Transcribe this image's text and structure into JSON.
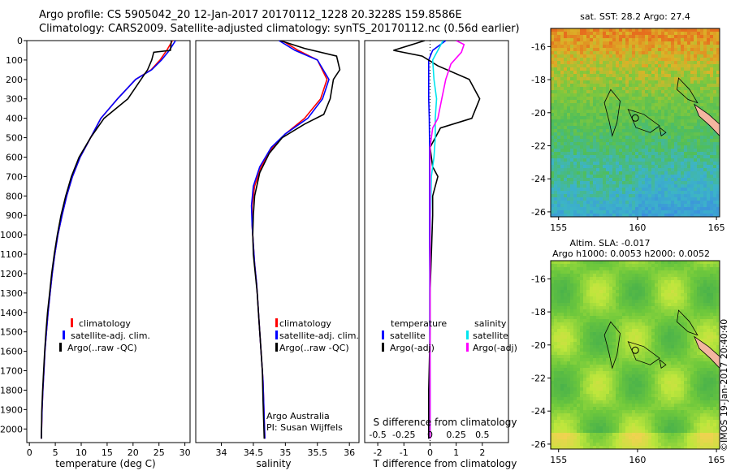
{
  "header": {
    "line1": "Argo profile: CS 5905042_20 12-Jan-2017 20170112_1228 20.3228S 159.8586E",
    "line2": "Climatology: CARS2009. Satellite-adjusted climatology: synTS_20170112.nc (0.56d earlier)"
  },
  "colors": {
    "climatology": "#ff0000",
    "satellite": "#0000ff",
    "argo": "#000000",
    "sal_satellite": "#00e5ee",
    "sal_argo": "#ff00ff"
  },
  "panels": {
    "temperature": {
      "xlabel": "temperature (deg C)",
      "legend": [
        "climatology",
        "satellite-adj. clim.",
        "Argo(..raw -QC)"
      ]
    },
    "salinity": {
      "xlabel": "salinity",
      "legend": [
        "climatology",
        "satellite-adj. clim.",
        "Argo(..raw -QC)"
      ],
      "credit1": "Argo Australia",
      "credit2": "PI: Susan Wijffels"
    },
    "difference": {
      "xlabel": "T difference from climatology",
      "toplabel": "S difference from climatology",
      "legend_temp_title": "temperature",
      "legend_sal_title": "salinity",
      "legend_temp": [
        "satellite",
        "Argo(-adj)"
      ],
      "legend_sal": [
        "satellite",
        "Argo(-adj)"
      ]
    },
    "sst_map": {
      "title": "sat. SST: 28.2  Argo: 27.4"
    },
    "sla_map": {
      "title1": "Altim. SLA: -0.017",
      "title2": "Argo h1000: 0.0053  h2000: 0.0052"
    },
    "watermark": "©IMOS 19-Jan-2017 20:40:40"
  },
  "chart_data": [
    {
      "type": "line",
      "name": "temperature",
      "xlabel": "temperature (deg C)",
      "ylabel": "",
      "xlim": [
        -0.5,
        31
      ],
      "ylim": [
        2070,
        0
      ],
      "xticks": [
        0,
        5,
        10,
        15,
        20,
        25,
        30
      ],
      "yticks": [
        0,
        100,
        200,
        300,
        400,
        500,
        600,
        700,
        800,
        900,
        1000,
        1100,
        1200,
        1300,
        1400,
        1500,
        1600,
        1700,
        1800,
        1900,
        2000
      ],
      "series": [
        {
          "name": "climatology",
          "x": [
            27.6,
            26.5,
            25.2,
            23.5,
            20.5,
            17.0,
            13.8,
            11.8,
            9.8,
            8.3,
            7.2,
            6.3,
            5.5,
            4.9,
            4.4,
            4.0,
            3.6,
            3.3,
            3.0,
            2.8,
            2.6,
            2.45,
            2.3
          ],
          "y": [
            0,
            50,
            100,
            150,
            200,
            300,
            400,
            500,
            600,
            700,
            800,
            900,
            1000,
            1100,
            1200,
            1300,
            1400,
            1500,
            1600,
            1700,
            1800,
            1900,
            2050
          ]
        },
        {
          "name": "satellite-adj. clim.",
          "x": [
            28.2,
            27.0,
            25.5,
            23.6,
            20.5,
            17.0,
            13.8,
            11.8,
            9.8,
            8.3,
            7.2,
            6.3,
            5.5,
            4.9,
            4.4,
            4.0,
            3.6,
            3.3,
            3.0,
            2.8,
            2.6,
            2.45,
            2.3
          ],
          "y": [
            0,
            50,
            100,
            150,
            200,
            300,
            400,
            500,
            600,
            700,
            800,
            900,
            1000,
            1100,
            1200,
            1300,
            1400,
            1500,
            1600,
            1700,
            1800,
            1900,
            2050
          ]
        },
        {
          "name": "Argo(..raw -QC)",
          "x": [
            27.4,
            27.2,
            24.0,
            23.6,
            22.8,
            19.0,
            14.4,
            11.8,
            9.6,
            8.1,
            7.0,
            6.1,
            5.4,
            4.8,
            4.3,
            3.9,
            3.5,
            3.2,
            2.95,
            2.75,
            2.55,
            2.4,
            2.3
          ],
          "y": [
            0,
            50,
            60,
            100,
            150,
            300,
            400,
            500,
            600,
            700,
            800,
            900,
            1000,
            1100,
            1200,
            1300,
            1400,
            1500,
            1600,
            1700,
            1800,
            1900,
            2050
          ]
        }
      ]
    },
    {
      "type": "line",
      "name": "salinity",
      "xlabel": "salinity",
      "ylabel": "",
      "xlim": [
        33.6,
        36.15
      ],
      "ylim": [
        2070,
        0
      ],
      "xticks": [
        34,
        34.5,
        35,
        35.5,
        36
      ],
      "series": [
        {
          "name": "climatology",
          "x": [
            34.95,
            35.2,
            35.5,
            35.65,
            35.55,
            35.3,
            35.0,
            34.8,
            34.62,
            34.52,
            34.48,
            34.48,
            34.5,
            34.52,
            34.55,
            34.57,
            34.59,
            34.61,
            34.63,
            34.65,
            34.66,
            34.67,
            34.68
          ],
          "y": [
            0,
            50,
            100,
            200,
            300,
            400,
            480,
            550,
            650,
            750,
            850,
            950,
            1050,
            1150,
            1250,
            1350,
            1450,
            1550,
            1650,
            1750,
            1850,
            1950,
            2050
          ]
        },
        {
          "name": "satellite-adj. clim.",
          "x": [
            34.9,
            35.15,
            35.5,
            35.68,
            35.58,
            35.35,
            35.0,
            34.78,
            34.6,
            34.5,
            34.47,
            34.48,
            34.5,
            34.52,
            34.55,
            34.57,
            34.59,
            34.61,
            34.63,
            34.65,
            34.66,
            34.67,
            34.68
          ],
          "y": [
            0,
            50,
            100,
            200,
            300,
            400,
            480,
            550,
            650,
            750,
            850,
            950,
            1050,
            1150,
            1250,
            1350,
            1450,
            1550,
            1650,
            1750,
            1850,
            1950,
            2050
          ]
        },
        {
          "name": "Argo(..raw -QC)",
          "x": [
            34.92,
            35.3,
            35.8,
            35.85,
            35.75,
            35.7,
            35.6,
            35.3,
            34.95,
            34.75,
            34.6,
            34.52,
            34.5,
            34.49,
            34.5,
            34.53,
            34.56,
            34.58,
            34.6,
            34.62,
            34.64,
            34.65,
            34.67
          ],
          "y": [
            0,
            40,
            80,
            150,
            200,
            300,
            380,
            430,
            500,
            580,
            680,
            800,
            900,
            1000,
            1100,
            1200,
            1300,
            1400,
            1500,
            1600,
            1700,
            1850,
            2050
          ]
        }
      ]
    },
    {
      "type": "line",
      "name": "difference",
      "xlabel": "T difference from climatology",
      "x2label": "S difference from climatology",
      "xlim": [
        -2.5,
        3
      ],
      "ylim": [
        2070,
        0
      ],
      "xticks": [
        -2,
        -1,
        0,
        1,
        2
      ],
      "x2ticks": [
        "-0.5",
        "-0.25",
        "0",
        "0.25",
        "0.5"
      ],
      "series": [
        {
          "name": "temperature satellite",
          "x": [
            0.6,
            0.1,
            -0.05,
            -0.05,
            -0.05,
            -0.03,
            -0.02,
            -0.02,
            -0.02,
            -0.02,
            -0.01,
            -0.01,
            0,
            0
          ],
          "y": [
            0,
            50,
            100,
            200,
            300,
            400,
            500,
            600,
            800,
            1000,
            1200,
            1500,
            1800,
            2050
          ]
        },
        {
          "name": "temperature Argo(-adj)",
          "x": [
            -0.2,
            -1.4,
            -0.3,
            0.3,
            1.5,
            1.9,
            1.6,
            0.4,
            0.0,
            0.1,
            0.3,
            0.1,
            0.1,
            0.05,
            0.0,
            0.0,
            -0.05,
            -0.05
          ],
          "y": [
            0,
            50,
            80,
            130,
            200,
            300,
            400,
            450,
            550,
            650,
            700,
            800,
            900,
            1100,
            1300,
            1500,
            1800,
            2050
          ]
        },
        {
          "name": "salinity satellite",
          "x": [
            0.5,
            0.3,
            0.1,
            0.15,
            0.25,
            0.2,
            0.2,
            0.15,
            0.05,
            0.02,
            0.0,
            0.0
          ],
          "y": [
            0,
            50,
            100,
            200,
            300,
            400,
            500,
            600,
            700,
            900,
            1200,
            2050
          ]
        },
        {
          "name": "salinity Argo(-adj)",
          "x": [
            1.0,
            1.3,
            1.2,
            0.8,
            0.6,
            0.45,
            0.3,
            0.1,
            0.0,
            0.0,
            0.0,
            0.0
          ],
          "y": [
            0,
            20,
            60,
            120,
            200,
            300,
            400,
            450,
            550,
            800,
            1200,
            2050
          ]
        }
      ]
    },
    {
      "type": "heatmap",
      "name": "sat. SST",
      "title": "sat. SST: 28.2  Argo: 27.4",
      "xlim": [
        154.5,
        165.2
      ],
      "ylim": [
        -26.3,
        -14.9
      ],
      "xticks": [
        155,
        160,
        165
      ],
      "yticks": [
        -16,
        -18,
        -20,
        -22,
        -24,
        -26
      ],
      "argo_position": [
        159.86,
        -20.32
      ]
    },
    {
      "type": "heatmap",
      "name": "Altim. SLA",
      "title": "Altim. SLA: -0.017",
      "subtitle": "Argo h1000: 0.0053  h2000: 0.0052",
      "xlim": [
        154.5,
        165.2
      ],
      "ylim": [
        -26.3,
        -14.9
      ],
      "xticks": [
        155,
        160,
        165
      ],
      "yticks": [
        -16,
        -18,
        -20,
        -22,
        -24,
        -26
      ],
      "argo_position": [
        159.86,
        -20.32
      ]
    }
  ]
}
